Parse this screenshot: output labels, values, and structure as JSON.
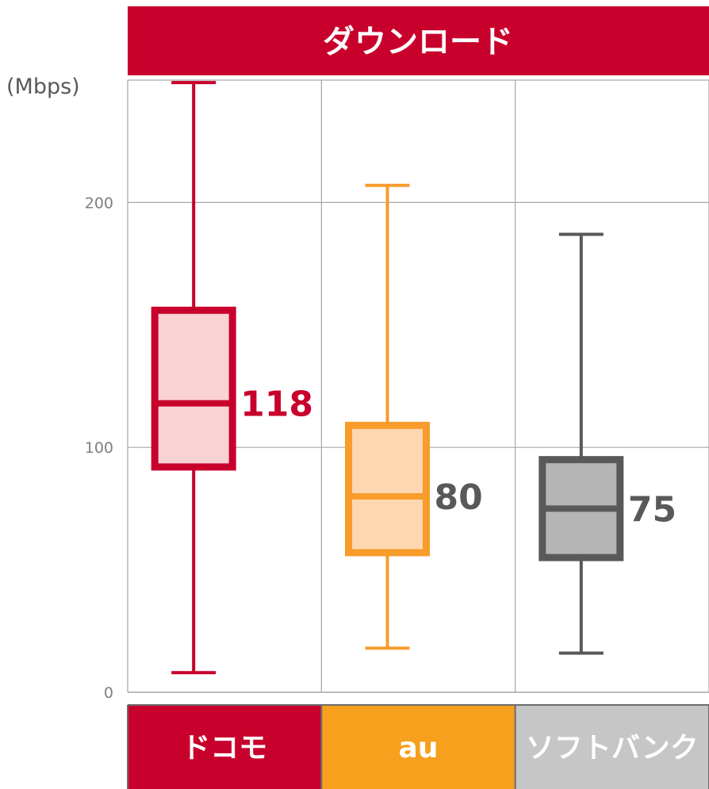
{
  "chart_data": {
    "type": "boxplot",
    "title": "ダウンロード",
    "ylabel": "(Mbps)",
    "ylim": [
      0,
      250
    ],
    "yticks": [
      0,
      100,
      200
    ],
    "grid": true,
    "categories": [
      "ドコモ",
      "au",
      "ソフトバンク"
    ],
    "series": [
      {
        "category": "ドコモ",
        "min": 8,
        "q1": 92,
        "median": 118,
        "q3": 156,
        "max": 249,
        "median_label": "118",
        "colors": {
          "stroke": "#c8002c",
          "fill": "#f9d2d4",
          "header": "#c8002c",
          "label": "#c8002c"
        }
      },
      {
        "category": "au",
        "min": 18,
        "q1": 57,
        "median": 80,
        "q3": 109,
        "max": 207,
        "median_label": "80",
        "colors": {
          "stroke": "#f89c2c",
          "fill": "#fed7b0",
          "header": "#f6a01d",
          "label": "#595959"
        }
      },
      {
        "category": "ソフトバンク",
        "min": 16,
        "q1": 55,
        "median": 75,
        "q3": 95,
        "max": 187,
        "median_label": "75",
        "colors": {
          "stroke": "#595959",
          "fill": "#b5b5b5",
          "header": "#c6c6c6",
          "label": "#595959"
        }
      }
    ],
    "title_bar_color": "#c8002c",
    "grid_color": "#a6a6a6"
  }
}
